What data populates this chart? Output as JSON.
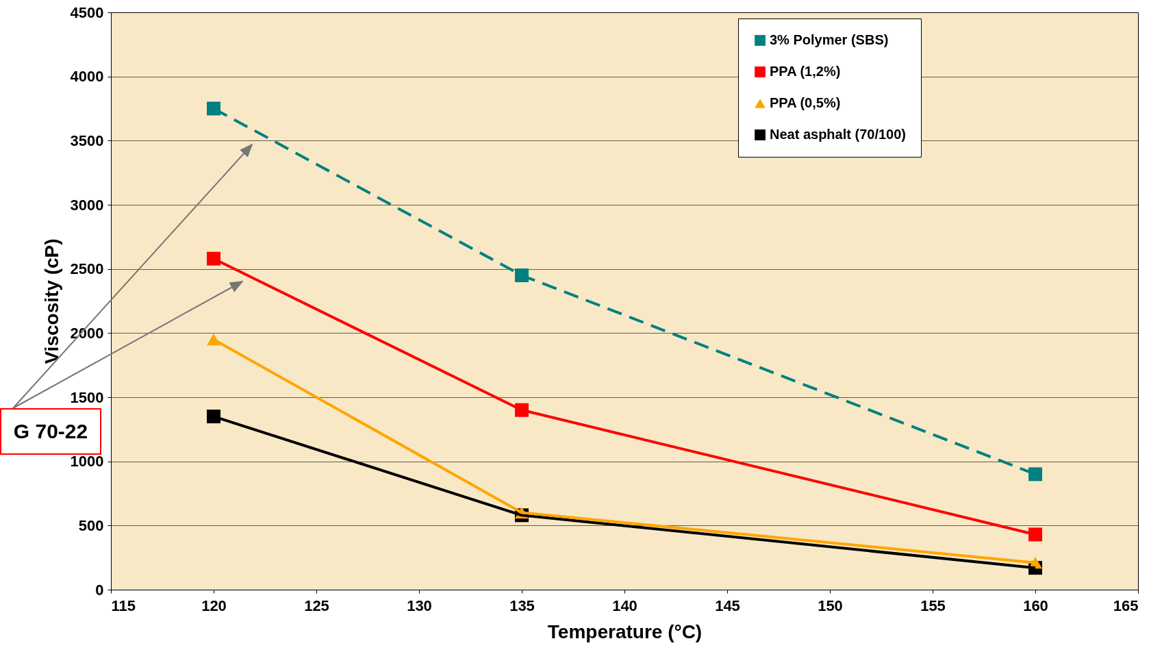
{
  "chart_data": {
    "type": "line",
    "xlabel": "Temperature (°C)",
    "ylabel": "Viscosity (cP)",
    "x": [
      120,
      135,
      160
    ],
    "series": [
      {
        "name": "3% Polymer (SBS)",
        "color": "#008080",
        "values": [
          3750,
          2450,
          900
        ],
        "marker": "square",
        "line_style": "dashed"
      },
      {
        "name": "PPA  (1,2%)",
        "color": "#ff0000",
        "values": [
          2580,
          1400,
          430
        ],
        "marker": "square",
        "line_style": "solid"
      },
      {
        "name": "PPA  (0,5%)",
        "color": "#ffa500",
        "values": [
          1950,
          600,
          210
        ],
        "marker": "triangle",
        "line_style": "solid"
      },
      {
        "name": "Neat asphalt (70/100)",
        "color": "#000000",
        "values": [
          1350,
          580,
          170
        ],
        "marker": "square",
        "line_style": "solid"
      }
    ],
    "xlim": [
      115,
      165
    ],
    "xticks": [
      115,
      120,
      125,
      130,
      135,
      140,
      145,
      150,
      155,
      160,
      165
    ],
    "ylim": [
      0,
      4500
    ],
    "yticks": [
      0,
      500,
      1000,
      1500,
      2000,
      2500,
      3000,
      3500,
      4000,
      4500
    ],
    "grid": "y",
    "legend": "top right",
    "annotations": [
      "G 70-22"
    ]
  }
}
